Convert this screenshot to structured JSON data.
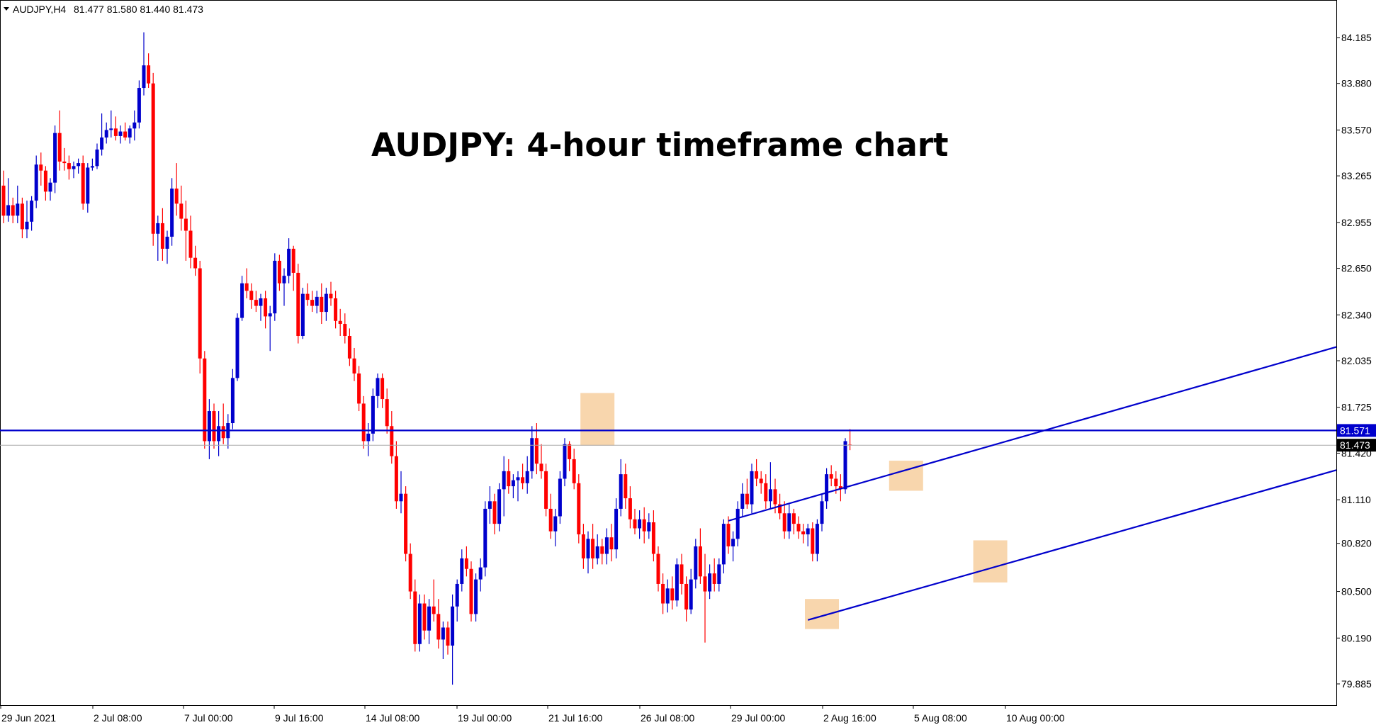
{
  "header": {
    "symbol": "AUDJPY,H4",
    "ohlc": "81.477 81.580 81.440 81.473"
  },
  "chart_data": {
    "type": "candlestick",
    "title": "AUDJPY: 4-hour timeframe chart",
    "symbol": "AUDJPY",
    "timeframe": "H4",
    "ylim": [
      79.7,
      84.4
    ],
    "y_ticks": [
      "84.185",
      "83.880",
      "83.570",
      "83.265",
      "82.955",
      "82.650",
      "82.340",
      "82.035",
      "81.725",
      "81.420",
      "81.110",
      "80.820",
      "80.500",
      "80.190",
      "79.885"
    ],
    "x_ticks": [
      "29 Jun 2021",
      "2 Jul 08:00",
      "7 Jul 00:00",
      "9 Jul 16:00",
      "14 Jul 08:00",
      "19 Jul 00:00",
      "21 Jul 16:00",
      "26 Jul 08:00",
      "29 Jul 00:00",
      "2 Aug 16:00",
      "5 Aug 08:00",
      "10 Aug 00:00"
    ],
    "horizontal_line": {
      "price": "81.571",
      "color": "#0000cc"
    },
    "current_price": {
      "price": "81.473",
      "color": "#aaaaaa"
    },
    "up_color": "#0000cc",
    "down_color": "#ff0000",
    "highlight_color": "#f5c58a",
    "channel": [
      {
        "name": "upper",
        "from": {
          "bar": 155,
          "price": 80.97
        },
        "to": {
          "bar": 300,
          "price": 82.26
        }
      },
      {
        "name": "lower",
        "from": {
          "bar": 172,
          "price": 80.31
        },
        "to": {
          "bar": 300,
          "price": 81.44
        }
      }
    ],
    "highlights": [
      {
        "bar": 127,
        "high": 81.82,
        "low": 81.47
      },
      {
        "bar": 175,
        "high": 80.45,
        "low": 80.25
      },
      {
        "bar": 193,
        "high": 81.37,
        "low": 81.17
      },
      {
        "bar": 211,
        "high": 80.84,
        "low": 80.56
      }
    ],
    "candles": [
      {
        "o": 83.2,
        "h": 83.3,
        "l": 82.95,
        "c": 83.0
      },
      {
        "o": 83.0,
        "h": 83.25,
        "l": 82.96,
        "c": 83.07
      },
      {
        "o": 83.07,
        "h": 83.12,
        "l": 82.95,
        "c": 83.0
      },
      {
        "o": 83.0,
        "h": 83.2,
        "l": 82.95,
        "c": 83.08
      },
      {
        "o": 83.08,
        "h": 83.12,
        "l": 82.85,
        "c": 82.91
      },
      {
        "o": 82.91,
        "h": 83.1,
        "l": 82.85,
        "c": 82.96
      },
      {
        "o": 82.96,
        "h": 83.13,
        "l": 82.9,
        "c": 83.1
      },
      {
        "o": 83.1,
        "h": 83.4,
        "l": 83.05,
        "c": 83.34
      },
      {
        "o": 83.34,
        "h": 83.42,
        "l": 83.2,
        "c": 83.3
      },
      {
        "o": 83.3,
        "h": 83.33,
        "l": 83.1,
        "c": 83.16
      },
      {
        "o": 83.16,
        "h": 83.25,
        "l": 83.1,
        "c": 83.22
      },
      {
        "o": 83.22,
        "h": 83.6,
        "l": 83.15,
        "c": 83.55
      },
      {
        "o": 83.55,
        "h": 83.7,
        "l": 83.3,
        "c": 83.36
      },
      {
        "o": 83.36,
        "h": 83.45,
        "l": 83.3,
        "c": 83.35
      },
      {
        "o": 83.35,
        "h": 83.4,
        "l": 83.24,
        "c": 83.31
      },
      {
        "o": 83.31,
        "h": 83.36,
        "l": 83.25,
        "c": 83.33
      },
      {
        "o": 83.33,
        "h": 83.38,
        "l": 83.28,
        "c": 83.35
      },
      {
        "o": 83.35,
        "h": 83.4,
        "l": 83.04,
        "c": 83.08
      },
      {
        "o": 83.08,
        "h": 83.35,
        "l": 83.02,
        "c": 83.32
      },
      {
        "o": 83.32,
        "h": 83.38,
        "l": 83.3,
        "c": 83.33
      },
      {
        "o": 83.33,
        "h": 83.48,
        "l": 83.31,
        "c": 83.44
      },
      {
        "o": 83.44,
        "h": 83.68,
        "l": 83.4,
        "c": 83.52
      },
      {
        "o": 83.52,
        "h": 83.62,
        "l": 83.48,
        "c": 83.57
      },
      {
        "o": 83.57,
        "h": 83.7,
        "l": 83.52,
        "c": 83.58
      },
      {
        "o": 83.58,
        "h": 83.66,
        "l": 83.5,
        "c": 83.53
      },
      {
        "o": 83.53,
        "h": 83.6,
        "l": 83.48,
        "c": 83.56
      },
      {
        "o": 83.56,
        "h": 83.62,
        "l": 83.5,
        "c": 83.52
      },
      {
        "o": 83.52,
        "h": 83.6,
        "l": 83.48,
        "c": 83.58
      },
      {
        "o": 83.58,
        "h": 83.7,
        "l": 83.5,
        "c": 83.62
      },
      {
        "o": 83.62,
        "h": 83.9,
        "l": 83.58,
        "c": 83.85
      },
      {
        "o": 83.85,
        "h": 84.22,
        "l": 83.8,
        "c": 84.0
      },
      {
        "o": 84.0,
        "h": 84.08,
        "l": 83.85,
        "c": 83.88
      },
      {
        "o": 83.88,
        "h": 83.95,
        "l": 82.8,
        "c": 82.88
      },
      {
        "o": 82.88,
        "h": 83.0,
        "l": 82.7,
        "c": 82.95
      },
      {
        "o": 82.95,
        "h": 83.05,
        "l": 82.7,
        "c": 82.78
      },
      {
        "o": 82.78,
        "h": 82.9,
        "l": 82.68,
        "c": 82.86
      },
      {
        "o": 82.86,
        "h": 83.25,
        "l": 82.8,
        "c": 83.18
      },
      {
        "o": 83.18,
        "h": 83.35,
        "l": 83.0,
        "c": 83.08
      },
      {
        "o": 83.08,
        "h": 83.2,
        "l": 82.9,
        "c": 82.98
      },
      {
        "o": 82.98,
        "h": 83.1,
        "l": 82.7,
        "c": 82.9
      },
      {
        "o": 82.9,
        "h": 83.0,
        "l": 82.65,
        "c": 82.72
      },
      {
        "o": 82.72,
        "h": 82.8,
        "l": 82.6,
        "c": 82.65
      },
      {
        "o": 82.65,
        "h": 82.7,
        "l": 81.95,
        "c": 82.05
      },
      {
        "o": 82.05,
        "h": 82.1,
        "l": 81.45,
        "c": 81.5
      },
      {
        "o": 81.5,
        "h": 81.78,
        "l": 81.38,
        "c": 81.7
      },
      {
        "o": 81.7,
        "h": 81.75,
        "l": 81.45,
        "c": 81.5
      },
      {
        "o": 81.5,
        "h": 81.7,
        "l": 81.4,
        "c": 81.6
      },
      {
        "o": 81.6,
        "h": 81.75,
        "l": 81.48,
        "c": 81.52
      },
      {
        "o": 81.52,
        "h": 81.68,
        "l": 81.45,
        "c": 81.62
      },
      {
        "o": 81.62,
        "h": 81.98,
        "l": 81.58,
        "c": 81.92
      },
      {
        "o": 81.92,
        "h": 82.35,
        "l": 81.9,
        "c": 82.32
      },
      {
        "o": 82.32,
        "h": 82.6,
        "l": 82.3,
        "c": 82.55
      },
      {
        "o": 82.55,
        "h": 82.65,
        "l": 82.45,
        "c": 82.5
      },
      {
        "o": 82.5,
        "h": 82.55,
        "l": 82.38,
        "c": 82.44
      },
      {
        "o": 82.44,
        "h": 82.5,
        "l": 82.36,
        "c": 82.4
      },
      {
        "o": 82.4,
        "h": 82.48,
        "l": 82.3,
        "c": 82.45
      },
      {
        "o": 82.45,
        "h": 82.5,
        "l": 82.25,
        "c": 82.33
      },
      {
        "o": 82.33,
        "h": 82.4,
        "l": 82.1,
        "c": 82.35
      },
      {
        "o": 82.35,
        "h": 82.75,
        "l": 82.3,
        "c": 82.7
      },
      {
        "o": 82.7,
        "h": 82.74,
        "l": 82.5,
        "c": 82.55
      },
      {
        "o": 82.55,
        "h": 82.65,
        "l": 82.4,
        "c": 82.6
      },
      {
        "o": 82.6,
        "h": 82.85,
        "l": 82.55,
        "c": 82.78
      },
      {
        "o": 82.78,
        "h": 82.8,
        "l": 82.5,
        "c": 82.62
      },
      {
        "o": 82.62,
        "h": 82.68,
        "l": 82.15,
        "c": 82.2
      },
      {
        "o": 82.2,
        "h": 82.52,
        "l": 82.18,
        "c": 82.48
      },
      {
        "o": 82.48,
        "h": 82.55,
        "l": 82.4,
        "c": 82.44
      },
      {
        "o": 82.44,
        "h": 82.5,
        "l": 82.36,
        "c": 82.4
      },
      {
        "o": 82.4,
        "h": 82.5,
        "l": 82.35,
        "c": 82.46
      },
      {
        "o": 82.46,
        "h": 82.55,
        "l": 82.28,
        "c": 82.36
      },
      {
        "o": 82.36,
        "h": 82.52,
        "l": 82.3,
        "c": 82.48
      },
      {
        "o": 82.48,
        "h": 82.56,
        "l": 82.4,
        "c": 82.45
      },
      {
        "o": 82.45,
        "h": 82.5,
        "l": 82.25,
        "c": 82.3
      },
      {
        "o": 82.3,
        "h": 82.38,
        "l": 82.2,
        "c": 82.28
      },
      {
        "o": 82.28,
        "h": 82.35,
        "l": 82.15,
        "c": 82.2
      },
      {
        "o": 82.2,
        "h": 82.25,
        "l": 82.0,
        "c": 82.05
      },
      {
        "o": 82.05,
        "h": 82.12,
        "l": 81.9,
        "c": 81.95
      },
      {
        "o": 81.95,
        "h": 82.0,
        "l": 81.7,
        "c": 81.75
      },
      {
        "o": 81.75,
        "h": 81.8,
        "l": 81.45,
        "c": 81.5
      },
      {
        "o": 81.5,
        "h": 81.62,
        "l": 81.4,
        "c": 81.55
      },
      {
        "o": 81.55,
        "h": 81.85,
        "l": 81.5,
        "c": 81.8
      },
      {
        "o": 81.8,
        "h": 81.95,
        "l": 81.72,
        "c": 81.92
      },
      {
        "o": 81.92,
        "h": 81.95,
        "l": 81.72,
        "c": 81.78
      },
      {
        "o": 81.78,
        "h": 81.85,
        "l": 81.55,
        "c": 81.6
      },
      {
        "o": 81.6,
        "h": 81.7,
        "l": 81.35,
        "c": 81.4
      },
      {
        "o": 81.4,
        "h": 81.5,
        "l": 81.05,
        "c": 81.1
      },
      {
        "o": 81.1,
        "h": 81.3,
        "l": 81.02,
        "c": 81.15
      },
      {
        "o": 81.15,
        "h": 81.2,
        "l": 80.7,
        "c": 80.75
      },
      {
        "o": 80.75,
        "h": 80.82,
        "l": 80.45,
        "c": 80.5
      },
      {
        "o": 80.5,
        "h": 80.58,
        "l": 80.1,
        "c": 80.15
      },
      {
        "o": 80.15,
        "h": 80.48,
        "l": 80.1,
        "c": 80.42
      },
      {
        "o": 80.42,
        "h": 80.48,
        "l": 80.18,
        "c": 80.24
      },
      {
        "o": 80.24,
        "h": 80.45,
        "l": 80.15,
        "c": 80.4
      },
      {
        "o": 80.4,
        "h": 80.58,
        "l": 80.3,
        "c": 80.35
      },
      {
        "o": 80.35,
        "h": 80.45,
        "l": 80.12,
        "c": 80.18
      },
      {
        "o": 80.18,
        "h": 80.3,
        "l": 80.05,
        "c": 80.26
      },
      {
        "o": 80.26,
        "h": 80.3,
        "l": 80.08,
        "c": 80.14
      },
      {
        "o": 80.14,
        "h": 80.48,
        "l": 79.88,
        "c": 80.4
      },
      {
        "o": 80.4,
        "h": 80.58,
        "l": 80.3,
        "c": 80.55
      },
      {
        "o": 80.55,
        "h": 80.78,
        "l": 80.5,
        "c": 80.72
      },
      {
        "o": 80.72,
        "h": 80.8,
        "l": 80.6,
        "c": 80.65
      },
      {
        "o": 80.65,
        "h": 80.7,
        "l": 80.3,
        "c": 80.35
      },
      {
        "o": 80.35,
        "h": 80.62,
        "l": 80.3,
        "c": 80.58
      },
      {
        "o": 80.58,
        "h": 80.72,
        "l": 80.5,
        "c": 80.66
      },
      {
        "o": 80.66,
        "h": 81.1,
        "l": 80.6,
        "c": 81.05
      },
      {
        "o": 81.05,
        "h": 81.2,
        "l": 80.95,
        "c": 81.1
      },
      {
        "o": 81.1,
        "h": 81.15,
        "l": 80.88,
        "c": 80.95
      },
      {
        "o": 80.95,
        "h": 81.22,
        "l": 80.9,
        "c": 81.18
      },
      {
        "o": 81.18,
        "h": 81.4,
        "l": 81.0,
        "c": 81.3
      },
      {
        "o": 81.3,
        "h": 81.38,
        "l": 81.15,
        "c": 81.2
      },
      {
        "o": 81.2,
        "h": 81.28,
        "l": 81.12,
        "c": 81.24
      },
      {
        "o": 81.24,
        "h": 81.3,
        "l": 81.1,
        "c": 81.26
      },
      {
        "o": 81.26,
        "h": 81.35,
        "l": 81.18,
        "c": 81.22
      },
      {
        "o": 81.22,
        "h": 81.4,
        "l": 81.15,
        "c": 81.3
      },
      {
        "o": 81.3,
        "h": 81.6,
        "l": 81.25,
        "c": 81.52
      },
      {
        "o": 81.52,
        "h": 81.62,
        "l": 81.28,
        "c": 81.35
      },
      {
        "o": 81.35,
        "h": 81.48,
        "l": 81.25,
        "c": 81.3
      },
      {
        "o": 81.3,
        "h": 81.35,
        "l": 81.0,
        "c": 81.05
      },
      {
        "o": 81.05,
        "h": 81.15,
        "l": 80.85,
        "c": 80.9
      },
      {
        "o": 80.9,
        "h": 81.05,
        "l": 80.8,
        "c": 81.0
      },
      {
        "o": 81.0,
        "h": 81.3,
        "l": 80.95,
        "c": 81.25
      },
      {
        "o": 81.25,
        "h": 81.52,
        "l": 81.2,
        "c": 81.48
      },
      {
        "o": 81.48,
        "h": 81.5,
        "l": 81.3,
        "c": 81.38
      },
      {
        "o": 81.38,
        "h": 81.45,
        "l": 81.18,
        "c": 81.22
      },
      {
        "o": 81.22,
        "h": 81.28,
        "l": 80.82,
        "c": 80.88
      },
      {
        "o": 80.88,
        "h": 80.95,
        "l": 80.65,
        "c": 80.72
      },
      {
        "o": 80.72,
        "h": 80.9,
        "l": 80.62,
        "c": 80.85
      },
      {
        "o": 80.85,
        "h": 80.95,
        "l": 80.65,
        "c": 80.72
      },
      {
        "o": 80.72,
        "h": 80.88,
        "l": 80.68,
        "c": 80.8
      },
      {
        "o": 80.8,
        "h": 80.85,
        "l": 80.68,
        "c": 80.75
      },
      {
        "o": 80.75,
        "h": 80.92,
        "l": 80.68,
        "c": 80.86
      },
      {
        "o": 80.86,
        "h": 80.95,
        "l": 80.7,
        "c": 80.78
      },
      {
        "o": 80.78,
        "h": 81.12,
        "l": 80.72,
        "c": 81.05
      },
      {
        "o": 81.05,
        "h": 81.38,
        "l": 81.0,
        "c": 81.28
      },
      {
        "o": 81.28,
        "h": 81.35,
        "l": 81.05,
        "c": 81.12
      },
      {
        "o": 81.12,
        "h": 81.2,
        "l": 80.92,
        "c": 80.98
      },
      {
        "o": 80.98,
        "h": 81.05,
        "l": 80.88,
        "c": 80.92
      },
      {
        "o": 80.92,
        "h": 81.04,
        "l": 80.85,
        "c": 80.98
      },
      {
        "o": 80.98,
        "h": 81.06,
        "l": 80.82,
        "c": 80.9
      },
      {
        "o": 80.9,
        "h": 81.02,
        "l": 80.85,
        "c": 80.96
      },
      {
        "o": 80.96,
        "h": 81.04,
        "l": 80.7,
        "c": 80.75
      },
      {
        "o": 80.75,
        "h": 80.8,
        "l": 80.5,
        "c": 80.55
      },
      {
        "o": 80.55,
        "h": 80.62,
        "l": 80.35,
        "c": 80.42
      },
      {
        "o": 80.42,
        "h": 80.58,
        "l": 80.36,
        "c": 80.52
      },
      {
        "o": 80.52,
        "h": 80.6,
        "l": 80.38,
        "c": 80.44
      },
      {
        "o": 80.44,
        "h": 80.72,
        "l": 80.4,
        "c": 80.68
      },
      {
        "o": 80.68,
        "h": 80.75,
        "l": 80.48,
        "c": 80.55
      },
      {
        "o": 80.55,
        "h": 80.6,
        "l": 80.3,
        "c": 80.38
      },
      {
        "o": 80.38,
        "h": 80.65,
        "l": 80.35,
        "c": 80.58
      },
      {
        "o": 80.58,
        "h": 80.85,
        "l": 80.52,
        "c": 80.8
      },
      {
        "o": 80.8,
        "h": 80.92,
        "l": 80.55,
        "c": 80.6
      },
      {
        "o": 80.6,
        "h": 80.75,
        "l": 80.16,
        "c": 80.5
      },
      {
        "o": 80.5,
        "h": 80.68,
        "l": 80.45,
        "c": 80.62
      },
      {
        "o": 80.62,
        "h": 80.72,
        "l": 80.5,
        "c": 80.55
      },
      {
        "o": 80.55,
        "h": 80.72,
        "l": 80.5,
        "c": 80.68
      },
      {
        "o": 80.68,
        "h": 80.98,
        "l": 80.62,
        "c": 80.95
      },
      {
        "o": 80.95,
        "h": 81.0,
        "l": 80.75,
        "c": 80.8
      },
      {
        "o": 80.8,
        "h": 80.9,
        "l": 80.7,
        "c": 80.85
      },
      {
        "o": 80.85,
        "h": 81.1,
        "l": 80.8,
        "c": 81.05
      },
      {
        "o": 81.05,
        "h": 81.22,
        "l": 81.0,
        "c": 81.15
      },
      {
        "o": 81.15,
        "h": 81.25,
        "l": 81.05,
        "c": 81.08
      },
      {
        "o": 81.08,
        "h": 81.35,
        "l": 81.02,
        "c": 81.3
      },
      {
        "o": 81.3,
        "h": 81.38,
        "l": 81.2,
        "c": 81.25
      },
      {
        "o": 81.25,
        "h": 81.3,
        "l": 81.15,
        "c": 81.22
      },
      {
        "o": 81.22,
        "h": 81.28,
        "l": 81.05,
        "c": 81.1
      },
      {
        "o": 81.1,
        "h": 81.36,
        "l": 81.05,
        "c": 81.18
      },
      {
        "o": 81.18,
        "h": 81.25,
        "l": 81.02,
        "c": 81.08
      },
      {
        "o": 81.08,
        "h": 81.15,
        "l": 80.98,
        "c": 81.02
      },
      {
        "o": 81.02,
        "h": 81.1,
        "l": 80.85,
        "c": 80.9
      },
      {
        "o": 80.9,
        "h": 81.08,
        "l": 80.85,
        "c": 81.02
      },
      {
        "o": 81.02,
        "h": 81.05,
        "l": 80.88,
        "c": 80.95
      },
      {
        "o": 80.95,
        "h": 81.0,
        "l": 80.85,
        "c": 80.9
      },
      {
        "o": 80.9,
        "h": 80.95,
        "l": 80.82,
        "c": 80.88
      },
      {
        "o": 80.88,
        "h": 80.95,
        "l": 80.8,
        "c": 80.92
      },
      {
        "o": 80.92,
        "h": 80.96,
        "l": 80.7,
        "c": 80.75
      },
      {
        "o": 80.75,
        "h": 80.98,
        "l": 80.7,
        "c": 80.95
      },
      {
        "o": 80.95,
        "h": 81.15,
        "l": 80.9,
        "c": 81.1
      },
      {
        "o": 81.1,
        "h": 81.32,
        "l": 81.05,
        "c": 81.28
      },
      {
        "o": 81.28,
        "h": 81.34,
        "l": 81.2,
        "c": 81.25
      },
      {
        "o": 81.25,
        "h": 81.3,
        "l": 81.15,
        "c": 81.2
      },
      {
        "o": 81.2,
        "h": 81.28,
        "l": 81.1,
        "c": 81.18
      },
      {
        "o": 81.18,
        "h": 81.52,
        "l": 81.15,
        "c": 81.5
      },
      {
        "o": 81.477,
        "h": 81.58,
        "l": 81.44,
        "c": 81.473
      }
    ]
  }
}
